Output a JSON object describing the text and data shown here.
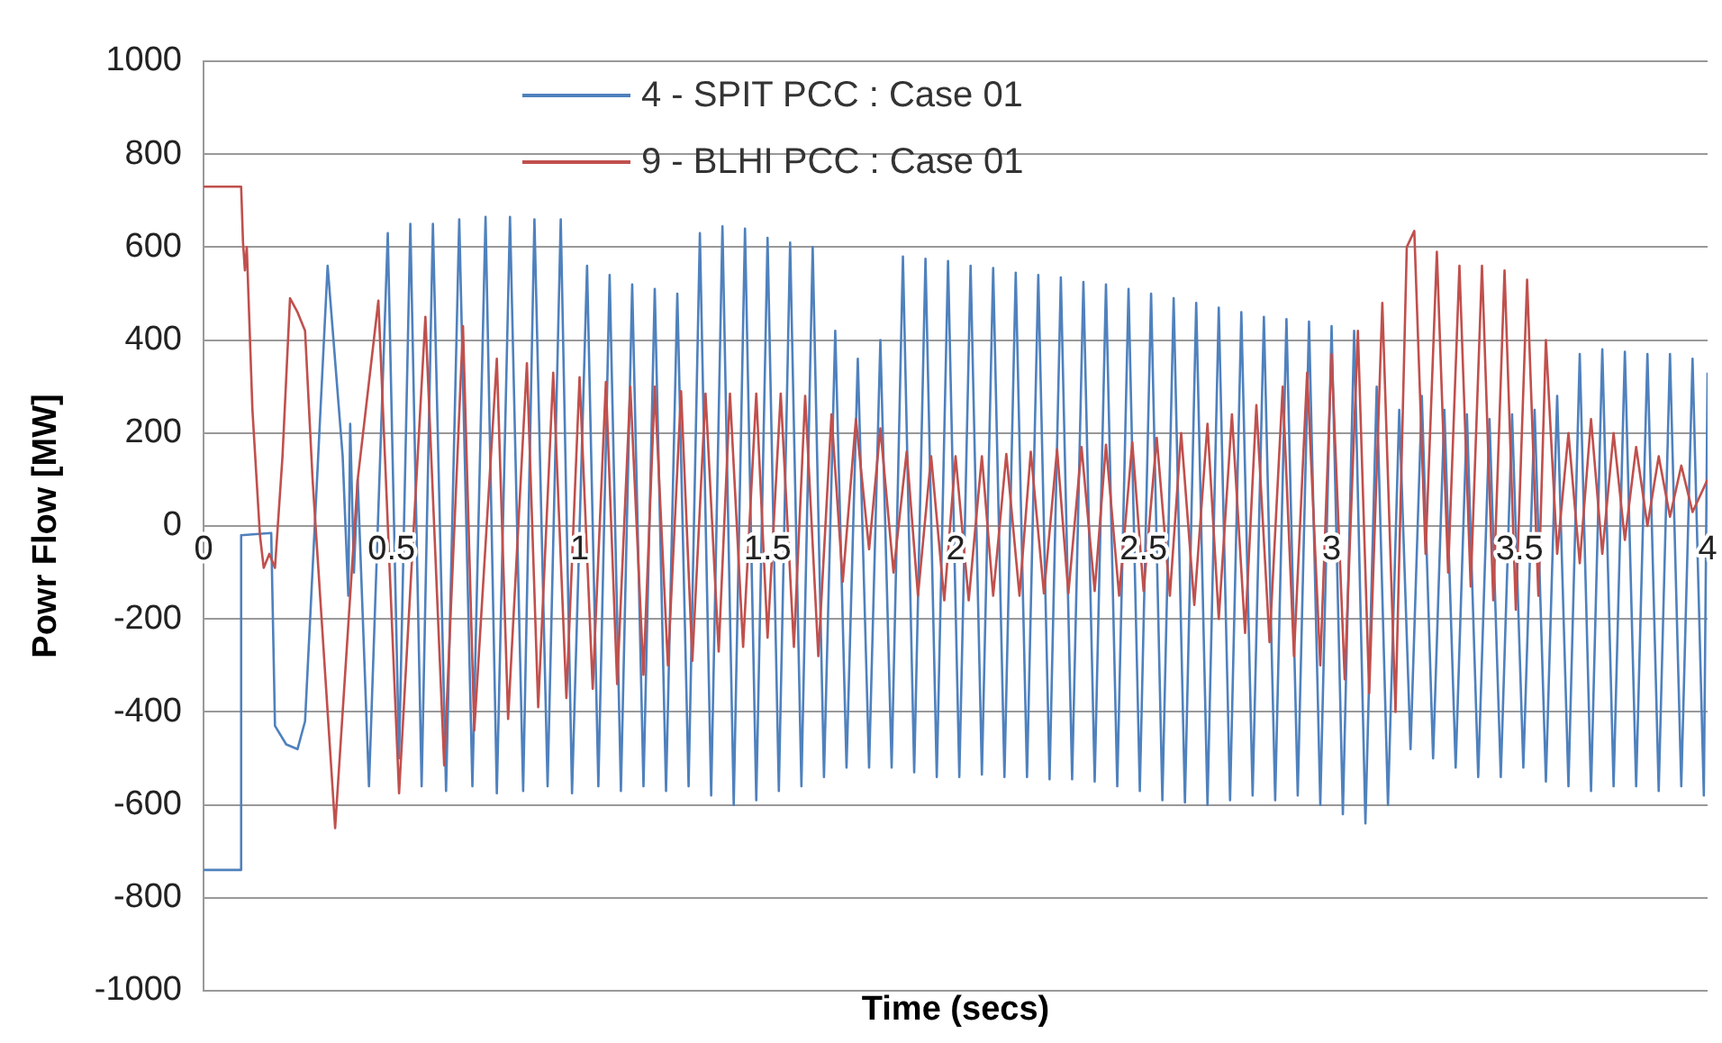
{
  "chart_data": {
    "type": "line",
    "xlabel": "Time (secs)",
    "ylabel": "Powr Flow [MW]",
    "xlim": [
      0,
      4
    ],
    "xticks": [
      0,
      0.5,
      1,
      1.5,
      2,
      2.5,
      3,
      3.5,
      4
    ],
    "ylim": [
      -1000,
      1000
    ],
    "yticks": [
      -1000,
      -800,
      -600,
      -400,
      -200,
      0,
      200,
      400,
      600,
      800,
      1000
    ],
    "grid": "y",
    "legend": "top",
    "marker": "none",
    "line_style": "solid",
    "series": [
      {
        "name": "4 - SPIT PCC : Case 01",
        "color": "#4f81bd",
        "x": [
          0,
          0.1,
          0.1,
          0.18,
          0.19,
          0.22,
          0.25,
          0.27,
          0.33,
          0.37,
          0.385,
          0.39,
          0.4,
          0.41,
          0.44,
          0.49,
          0.52,
          0.55,
          0.58,
          0.61,
          0.645,
          0.68,
          0.715,
          0.75,
          0.78,
          0.815,
          0.85,
          0.88,
          0.915,
          0.95,
          0.98,
          1.02,
          1.05,
          1.08,
          1.11,
          1.14,
          1.17,
          1.2,
          1.23,
          1.26,
          1.29,
          1.32,
          1.35,
          1.38,
          1.41,
          1.44,
          1.47,
          1.5,
          1.53,
          1.56,
          1.59,
          1.62,
          1.65,
          1.68,
          1.71,
          1.74,
          1.77,
          1.8,
          1.83,
          1.86,
          1.89,
          1.92,
          1.95,
          1.98,
          2.01,
          2.04,
          2.07,
          2.1,
          2.13,
          2.16,
          2.19,
          2.22,
          2.25,
          2.28,
          2.31,
          2.34,
          2.37,
          2.4,
          2.43,
          2.46,
          2.49,
          2.52,
          2.55,
          2.58,
          2.61,
          2.64,
          2.67,
          2.7,
          2.73,
          2.76,
          2.79,
          2.82,
          2.85,
          2.88,
          2.91,
          2.94,
          2.97,
          3.0,
          3.03,
          3.06,
          3.09,
          3.12,
          3.15,
          3.18,
          3.21,
          3.24,
          3.27,
          3.3,
          3.33,
          3.36,
          3.39,
          3.42,
          3.45,
          3.48,
          3.51,
          3.54,
          3.57,
          3.6,
          3.63,
          3.66,
          3.69,
          3.72,
          3.75,
          3.78,
          3.81,
          3.84,
          3.87,
          3.9,
          3.93,
          3.96,
          3.99,
          4.0
        ],
        "values": [
          -740,
          -740,
          -20,
          -15,
          -430,
          -470,
          -480,
          -420,
          560,
          150,
          -150,
          220,
          -100,
          100,
          -560,
          630,
          -500,
          650,
          -560,
          650,
          -570,
          660,
          -560,
          665,
          -575,
          665,
          -570,
          660,
          -560,
          660,
          -575,
          560,
          -560,
          540,
          -570,
          520,
          -560,
          510,
          -570,
          500,
          -560,
          630,
          -580,
          645,
          -600,
          640,
          -590,
          620,
          -570,
          610,
          -560,
          600,
          -540,
          420,
          -520,
          360,
          -520,
          400,
          -520,
          580,
          -530,
          575,
          -540,
          570,
          -540,
          560,
          -535,
          555,
          -540,
          545,
          -540,
          540,
          -545,
          535,
          -545,
          525,
          -550,
          520,
          -560,
          510,
          -570,
          500,
          -590,
          490,
          -595,
          480,
          -600,
          470,
          -590,
          460,
          -580,
          450,
          -590,
          445,
          -580,
          440,
          -600,
          430,
          -620,
          420,
          -640,
          300,
          -600,
          250,
          -480,
          280,
          -500,
          250,
          -520,
          240,
          -540,
          230,
          -540,
          240,
          -520,
          250,
          -550,
          280,
          -560,
          370,
          -570,
          380,
          -560,
          375,
          -560,
          370,
          -570,
          370,
          -560,
          360,
          -580,
          330
        ]
      },
      {
        "name": "9 - BLHI PCC : Case 01",
        "color": "#c0504d",
        "x": [
          0,
          0.1,
          0.105,
          0.11,
          0.115,
          0.13,
          0.15,
          0.16,
          0.175,
          0.19,
          0.21,
          0.23,
          0.25,
          0.27,
          0.29,
          0.35,
          0.41,
          0.465,
          0.52,
          0.59,
          0.64,
          0.69,
          0.72,
          0.78,
          0.81,
          0.86,
          0.89,
          0.93,
          0.965,
          1.0,
          1.035,
          1.07,
          1.1,
          1.135,
          1.17,
          1.2,
          1.235,
          1.27,
          1.3,
          1.335,
          1.37,
          1.4,
          1.435,
          1.47,
          1.5,
          1.535,
          1.57,
          1.6,
          1.635,
          1.67,
          1.7,
          1.735,
          1.77,
          1.8,
          1.835,
          1.87,
          1.9,
          1.935,
          1.97,
          2.0,
          2.035,
          2.07,
          2.1,
          2.135,
          2.17,
          2.2,
          2.235,
          2.27,
          2.3,
          2.335,
          2.37,
          2.4,
          2.435,
          2.47,
          2.5,
          2.535,
          2.57,
          2.6,
          2.635,
          2.67,
          2.7,
          2.735,
          2.77,
          2.8,
          2.835,
          2.87,
          2.9,
          2.935,
          2.97,
          3.0,
          3.035,
          3.07,
          3.1,
          3.135,
          3.17,
          3.2,
          3.22,
          3.25,
          3.28,
          3.31,
          3.34,
          3.37,
          3.4,
          3.43,
          3.46,
          3.49,
          3.52,
          3.55,
          3.57,
          3.6,
          3.63,
          3.66,
          3.69,
          3.72,
          3.75,
          3.78,
          3.81,
          3.84,
          3.87,
          3.9,
          3.93,
          3.96,
          4.0
        ],
        "values": [
          730,
          730,
          610,
          550,
          600,
          250,
          -20,
          -90,
          -60,
          -90,
          150,
          490,
          460,
          420,
          100,
          -650,
          100,
          485,
          -575,
          450,
          -515,
          430,
          -440,
          360,
          -415,
          350,
          -390,
          330,
          -370,
          320,
          -350,
          310,
          -340,
          300,
          -320,
          300,
          -300,
          290,
          -290,
          285,
          -270,
          285,
          -260,
          285,
          -240,
          285,
          -260,
          280,
          -280,
          240,
          -120,
          230,
          -50,
          210,
          -100,
          160,
          -150,
          150,
          -160,
          150,
          -160,
          150,
          -150,
          155,
          -150,
          160,
          -145,
          165,
          -145,
          170,
          -140,
          175,
          -150,
          180,
          -140,
          190,
          -150,
          200,
          -170,
          220,
          -200,
          240,
          -230,
          260,
          -250,
          300,
          -280,
          330,
          -300,
          370,
          -330,
          420,
          -360,
          480,
          -400,
          600,
          635,
          -60,
          590,
          -100,
          560,
          -130,
          560,
          -160,
          550,
          -180,
          530,
          -150,
          400,
          -60,
          200,
          -80,
          230,
          -60,
          200,
          -30,
          170,
          0,
          150,
          20,
          130,
          30,
          100
        ]
      }
    ]
  }
}
